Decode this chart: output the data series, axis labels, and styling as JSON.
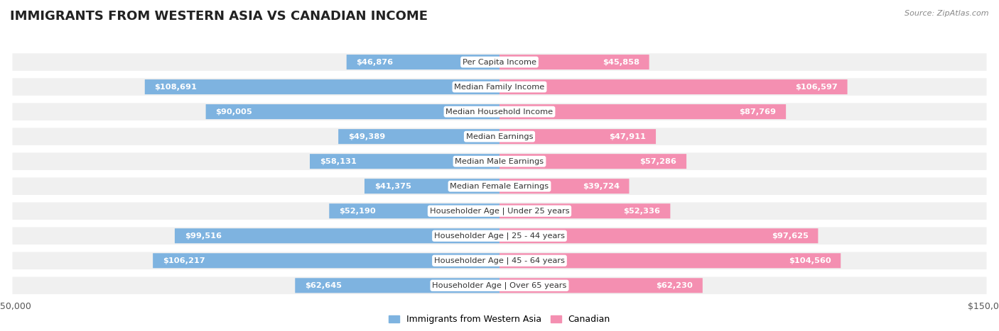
{
  "title": "IMMIGRANTS FROM WESTERN ASIA VS CANADIAN INCOME",
  "source": "Source: ZipAtlas.com",
  "categories": [
    "Per Capita Income",
    "Median Family Income",
    "Median Household Income",
    "Median Earnings",
    "Median Male Earnings",
    "Median Female Earnings",
    "Householder Age | Under 25 years",
    "Householder Age | 25 - 44 years",
    "Householder Age | 45 - 64 years",
    "Householder Age | Over 65 years"
  ],
  "immigrants_values": [
    46876,
    108691,
    90005,
    49389,
    58131,
    41375,
    52190,
    99516,
    106217,
    62645
  ],
  "canadian_values": [
    45858,
    106597,
    87769,
    47911,
    57286,
    39724,
    52336,
    97625,
    104560,
    62230
  ],
  "immigrants_labels": [
    "$46,876",
    "$108,691",
    "$90,005",
    "$49,389",
    "$58,131",
    "$41,375",
    "$52,190",
    "$99,516",
    "$106,217",
    "$62,645"
  ],
  "canadian_labels": [
    "$45,858",
    "$106,597",
    "$87,769",
    "$47,911",
    "$57,286",
    "$39,724",
    "$52,336",
    "$97,625",
    "$104,560",
    "$62,230"
  ],
  "max_value": 150000,
  "immigrants_color": "#7EB3E0",
  "canadian_color": "#F48FB1",
  "background_color": "#ffffff",
  "row_bg_color": "#f0f0f0",
  "legend_immigrants": "Immigrants from Western Asia",
  "legend_canadian": "Canadian",
  "title_fontsize": 13,
  "label_fontsize": 8.2,
  "tick_fontsize": 9,
  "inside_threshold": 30000
}
